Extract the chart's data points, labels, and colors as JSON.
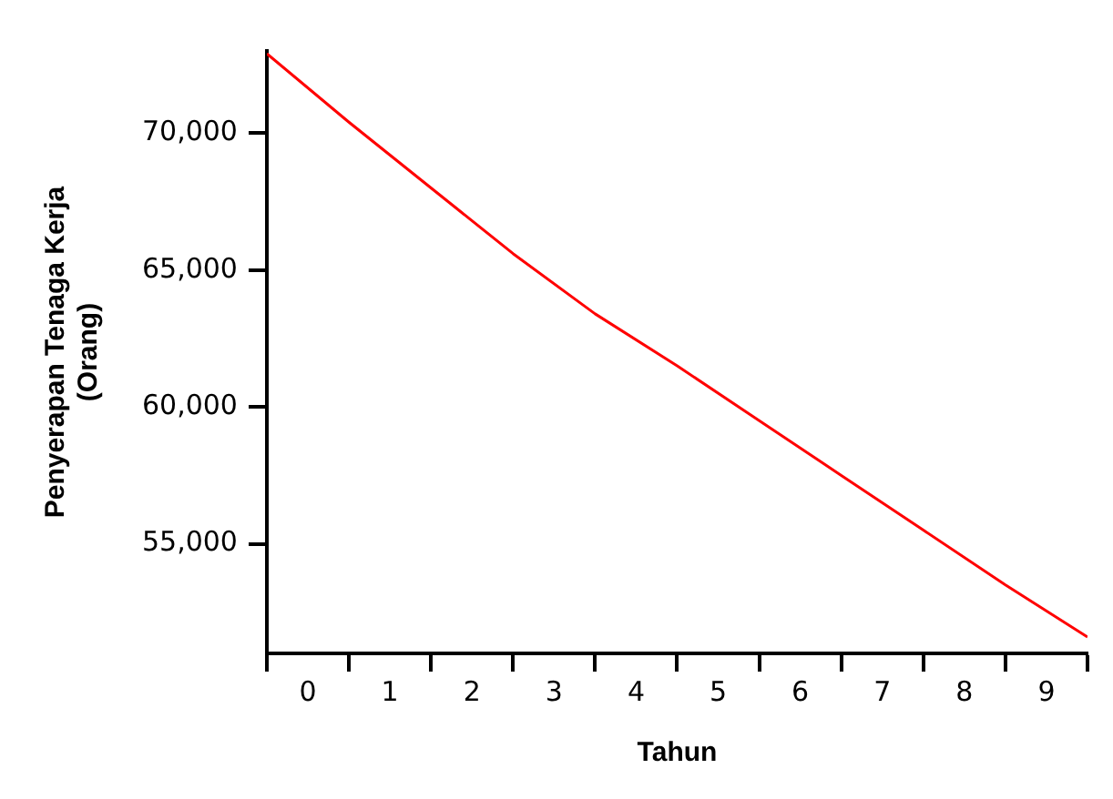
{
  "chart_data": {
    "type": "line",
    "xlabel": "Tahun",
    "ylabel": "Penyerapan Tenaga Kerja (Orang)",
    "series": [
      {
        "color": "#ff0000",
        "x": [
          -0.5,
          0.5,
          1.5,
          2.5,
          3.5,
          4.5,
          5.5,
          6.5,
          7.5,
          8.5,
          9.5
        ],
        "values": [
          72900,
          70400,
          68000,
          65600,
          63400,
          61500,
          59500,
          57500,
          55500,
          53500,
          51600
        ]
      }
    ],
    "xlim": [
      -0.5,
      9.5
    ],
    "xticks": [
      {
        "value": -0.5,
        "label": null
      },
      {
        "value": 0,
        "label": "0"
      },
      {
        "value": 0.5,
        "label": null
      },
      {
        "value": 1,
        "label": "1"
      },
      {
        "value": 1.5,
        "label": null
      },
      {
        "value": 2,
        "label": "2"
      },
      {
        "value": 2.5,
        "label": null
      },
      {
        "value": 3,
        "label": "3"
      },
      {
        "value": 3.5,
        "label": null
      },
      {
        "value": 4,
        "label": "4"
      },
      {
        "value": 4.5,
        "label": null
      },
      {
        "value": 5,
        "label": "5"
      },
      {
        "value": 5.5,
        "label": null
      },
      {
        "value": 6,
        "label": "6"
      },
      {
        "value": 6.5,
        "label": null
      },
      {
        "value": 7,
        "label": "7"
      },
      {
        "value": 7.5,
        "label": null
      },
      {
        "value": 8,
        "label": "8"
      },
      {
        "value": 8.5,
        "label": null
      },
      {
        "value": 9,
        "label": "9"
      },
      {
        "value": 9.5,
        "label": null
      }
    ],
    "ylim": [
      51000,
      73000
    ],
    "yticks": [
      {
        "value": 55000,
        "label": "55,000"
      },
      {
        "value": 60000,
        "label": "60,000"
      },
      {
        "value": 65000,
        "label": "65,000"
      },
      {
        "value": 70000,
        "label": "70,000"
      }
    ],
    "grid": false,
    "legend": false,
    "marker": "none",
    "line_style": "solid"
  }
}
